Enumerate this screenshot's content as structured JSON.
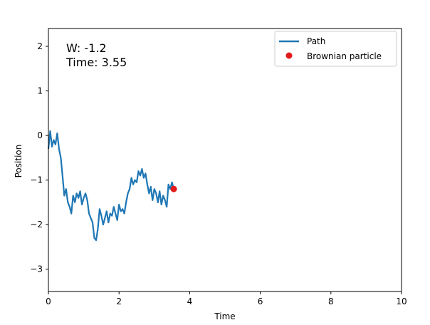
{
  "chart_data": {
    "type": "line",
    "title": "",
    "xlabel": "Time",
    "ylabel": "Position",
    "xlim": [
      0,
      10
    ],
    "ylim": [
      -3.5,
      2.4
    ],
    "grid": false,
    "x_ticks": [
      0,
      2,
      4,
      6,
      8,
      10
    ],
    "y_ticks": [
      2,
      1,
      0,
      -1,
      -2,
      -3
    ],
    "x_tick_labels": [
      "0",
      "2",
      "4",
      "6",
      "8",
      "10"
    ],
    "y_tick_labels": [
      "2",
      "1",
      "0",
      "−1",
      "−2",
      "−3"
    ],
    "annotation": {
      "w_text": "W: -1.2",
      "time_text": "Time: 3.55"
    },
    "legend": {
      "position": "top-right",
      "entries": [
        {
          "label": "Path",
          "kind": "line",
          "color": "#1f77b4"
        },
        {
          "label": "Brownian particle",
          "kind": "marker",
          "color": "#e31a1c"
        }
      ]
    },
    "series": [
      {
        "name": "Path",
        "color": "#1f77b4",
        "x": [
          0.0,
          0.05,
          0.1,
          0.15,
          0.2,
          0.25,
          0.3,
          0.35,
          0.4,
          0.45,
          0.5,
          0.55,
          0.6,
          0.65,
          0.7,
          0.75,
          0.8,
          0.85,
          0.9,
          0.95,
          1.0,
          1.05,
          1.1,
          1.15,
          1.2,
          1.25,
          1.3,
          1.35,
          1.4,
          1.45,
          1.5,
          1.55,
          1.6,
          1.65,
          1.7,
          1.75,
          1.8,
          1.85,
          1.9,
          1.95,
          2.0,
          2.05,
          2.1,
          2.15,
          2.2,
          2.25,
          2.3,
          2.35,
          2.4,
          2.45,
          2.5,
          2.55,
          2.6,
          2.65,
          2.7,
          2.75,
          2.8,
          2.85,
          2.9,
          2.95,
          3.0,
          3.05,
          3.1,
          3.15,
          3.2,
          3.25,
          3.3,
          3.35,
          3.4,
          3.45,
          3.5,
          3.55
        ],
        "y": [
          -0.3,
          0.1,
          -0.25,
          -0.1,
          -0.2,
          0.05,
          -0.3,
          -0.5,
          -0.9,
          -1.35,
          -1.2,
          -1.5,
          -1.6,
          -1.75,
          -1.35,
          -1.5,
          -1.3,
          -1.4,
          -1.25,
          -1.55,
          -1.4,
          -1.3,
          -1.45,
          -1.75,
          -1.85,
          -1.95,
          -2.3,
          -2.35,
          -2.1,
          -1.65,
          -1.8,
          -2.0,
          -1.85,
          -1.7,
          -1.95,
          -1.75,
          -1.8,
          -1.6,
          -1.75,
          -1.9,
          -1.55,
          -1.7,
          -1.65,
          -1.75,
          -1.5,
          -1.3,
          -1.2,
          -0.95,
          -1.1,
          -1.0,
          -1.05,
          -0.8,
          -0.9,
          -0.75,
          -0.95,
          -0.85,
          -1.1,
          -1.3,
          -1.15,
          -1.45,
          -1.2,
          -1.3,
          -1.5,
          -1.25,
          -1.55,
          -1.35,
          -1.45,
          -1.6,
          -1.1,
          -1.2,
          -1.05,
          -1.2
        ]
      },
      {
        "name": "Brownian particle",
        "color": "#e31a1c",
        "kind": "scatter",
        "x": [
          3.55
        ],
        "y": [
          -1.2
        ]
      }
    ]
  }
}
